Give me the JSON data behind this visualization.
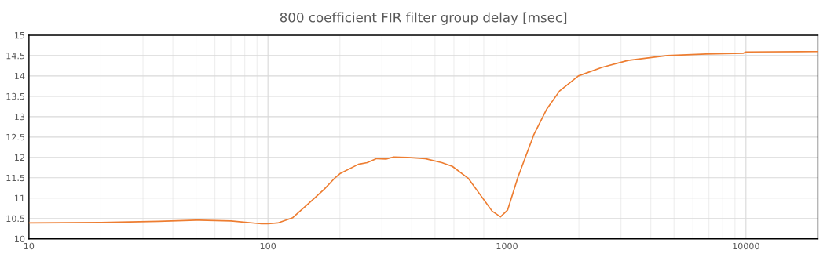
{
  "chart_data": {
    "type": "line",
    "title": "800 coefficient FIR filter group delay [msec]",
    "log": "x",
    "grid": true,
    "xlim": [
      10,
      20000
    ],
    "xticks": [
      10,
      100,
      1000,
      10000
    ],
    "ylim": [
      10,
      15
    ],
    "yticks": [
      10,
      10.5,
      11,
      11.5,
      12,
      12.5,
      13,
      13.5,
      14,
      14.5,
      15
    ],
    "line_style": "solid",
    "marker": "none",
    "series": [
      {
        "color": "#ed7d31",
        "x": [
          10,
          20,
          35,
          50,
          70,
          94,
          100,
          110,
          127,
          152,
          172,
          191,
          200,
          239,
          260,
          285,
          312,
          336,
          385,
          455,
          534,
          591,
          688,
          778,
          867,
          940,
          1007,
          1111,
          1294,
          1469,
          1660,
          1990,
          2495,
          3206,
          4680,
          6820,
          9770,
          10000,
          20000
        ],
        "values": [
          10.39,
          10.4,
          10.43,
          10.46,
          10.44,
          10.37,
          10.37,
          10.39,
          10.52,
          10.93,
          11.22,
          11.5,
          11.6,
          11.83,
          11.87,
          11.97,
          11.96,
          12.01,
          12.0,
          11.97,
          11.87,
          11.78,
          11.49,
          11.06,
          10.68,
          10.54,
          10.71,
          11.51,
          12.55,
          13.19,
          13.63,
          14.0,
          14.21,
          14.38,
          14.5,
          14.54,
          14.56,
          14.59,
          14.6
        ]
      }
    ]
  }
}
